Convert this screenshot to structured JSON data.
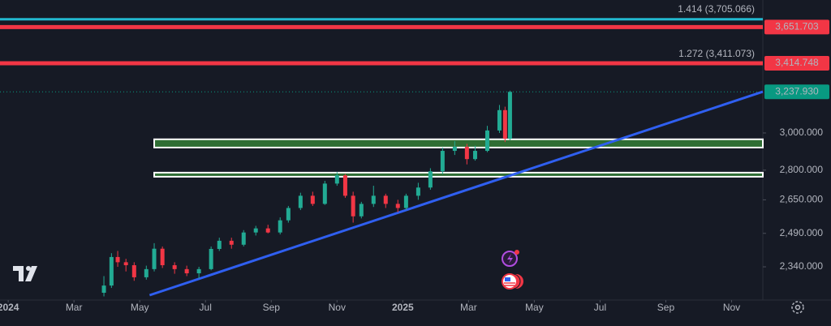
{
  "chart_data": {
    "type": "candlestick",
    "x": [
      2.91,
      3.14,
      3.33,
      3.58,
      3.83,
      4.2,
      4.44,
      4.69,
      5.06,
      5.43,
      5.8,
      6.17,
      6.42,
      6.79,
      7.16,
      7.53,
      7.9,
      8.27,
      8.52,
      8.89,
      9.26,
      9.63,
      10.0,
      10.25,
      10.49,
      10.74,
      11.11,
      11.48,
      11.85,
      12.1,
      12.47,
      12.84,
      13.21,
      13.58,
      13.95,
      14.2,
      14.57,
      14.94,
      15.11,
      15.26
    ],
    "open": [
      2230,
      2260,
      2383,
      2360,
      2347,
      2295,
      2330,
      2420,
      2347,
      2330,
      2312,
      2330,
      2419,
      2456,
      2438,
      2494,
      2513,
      2494,
      2551,
      2610,
      2670,
      2630,
      2731,
      2773,
      2670,
      2570,
      2630,
      2670,
      2630,
      2610,
      2670,
      2711,
      2794,
      2902,
      2924,
      2858,
      2902,
      3014,
      3130,
      2968
    ],
    "high": [
      2300,
      2400,
      2410,
      2375,
      2360,
      2345,
      2445,
      2430,
      2360,
      2345,
      2340,
      2430,
      2470,
      2470,
      2505,
      2525,
      2530,
      2565,
      2620,
      2685,
      2690,
      2745,
      2790,
      2780,
      2690,
      2640,
      2720,
      2680,
      2650,
      2680,
      2735,
      2810,
      2920,
      2955,
      2940,
      2930,
      3040,
      3160,
      3150,
      3245
    ],
    "low": [
      2215,
      2250,
      2340,
      2320,
      2280,
      2285,
      2320,
      2335,
      2310,
      2300,
      2290,
      2325,
      2410,
      2420,
      2430,
      2480,
      2490,
      2485,
      2540,
      2600,
      2620,
      2625,
      2720,
      2660,
      2540,
      2560,
      2615,
      2610,
      2590,
      2600,
      2650,
      2700,
      2780,
      2880,
      2830,
      2850,
      2895,
      3000,
      2950,
      2960
    ],
    "close": [
      2260,
      2383,
      2360,
      2347,
      2295,
      2330,
      2420,
      2347,
      2330,
      2312,
      2330,
      2419,
      2456,
      2438,
      2494,
      2513,
      2494,
      2551,
      2610,
      2670,
      2630,
      2731,
      2773,
      2670,
      2570,
      2630,
      2670,
      2630,
      2610,
      2670,
      2711,
      2794,
      2902,
      2924,
      2858,
      2902,
      3014,
      3130,
      2968,
      3237.93
    ],
    "up_color": "#22ab94",
    "down_color": "#f23645",
    "xlim": [
      -0.25,
      22.95
    ],
    "xticks": [
      {
        "value": 0,
        "label": "2024"
      },
      {
        "value": 2,
        "label": "Mar"
      },
      {
        "value": 4,
        "label": "May"
      },
      {
        "value": 6,
        "label": "Jul"
      },
      {
        "value": 8,
        "label": "Sep"
      },
      {
        "value": 10,
        "label": "Nov"
      },
      {
        "value": 12,
        "label": "2025"
      },
      {
        "value": 14,
        "label": "Mar"
      },
      {
        "value": 16,
        "label": "May"
      },
      {
        "value": 18,
        "label": "Jul"
      },
      {
        "value": 20,
        "label": "Sep"
      },
      {
        "value": 22,
        "label": "Nov"
      }
    ],
    "ylim": [
      2200,
      3840
    ],
    "log_scale": true,
    "grid": false,
    "yticks": [
      {
        "value": 2340,
        "label": "2,340.000"
      },
      {
        "value": 2490,
        "label": "2,490.000"
      },
      {
        "value": 2650,
        "label": "2,650.000"
      },
      {
        "value": 2800,
        "label": "2,800.000"
      },
      {
        "value": 3000,
        "label": "3,000.000"
      }
    ],
    "levels": [
      {
        "label": "1.414 (3,705.066)",
        "value": 3705.066,
        "color": "#22b8cf"
      },
      {
        "label": "1.272 (3,411.073)",
        "value": 3411.073,
        "color": "#22b8cf"
      }
    ],
    "price_lines": [
      {
        "value": 3651.703,
        "label": "3,651.703",
        "color": "#f23645"
      },
      {
        "value": 3414.748,
        "label": "3,414.748",
        "color": "#f23645"
      },
      {
        "value": 3237.93,
        "label": "3,237.930",
        "color": "#089981"
      }
    ],
    "zones": [
      {
        "x0": 4.44,
        "from": 2920,
        "to": 2965,
        "color": "#2f6e34"
      },
      {
        "x0": 4.44,
        "from": 2766,
        "to": 2787,
        "color": "#2f6e34"
      }
    ],
    "trendline": {
      "x": [
        4.3,
        22.95
      ],
      "y": [
        2220,
        3239
      ],
      "color": "#2f5ff0"
    }
  }
}
